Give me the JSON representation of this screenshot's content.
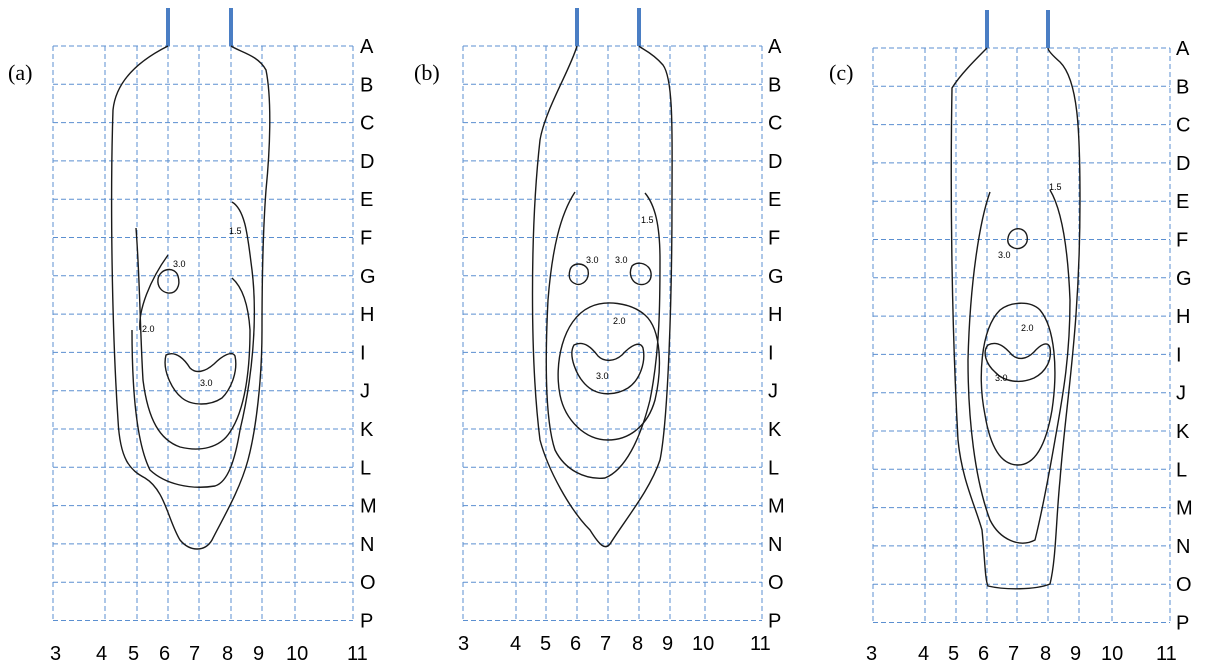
{
  "panels": [
    {
      "label": "(a)",
      "rows": [
        "A",
        "B",
        "C",
        "D",
        "E",
        "F",
        "G",
        "H",
        "I",
        "J",
        "K",
        "L",
        "M",
        "N",
        "O",
        "P"
      ],
      "columns": [
        "3",
        "4",
        "5",
        "6",
        "7",
        "8",
        "9",
        "10",
        "11"
      ],
      "contour_labels": [
        "1.5",
        "3.0",
        "2.0",
        "3.0"
      ]
    },
    {
      "label": "(b)",
      "rows": [
        "A",
        "B",
        "C",
        "D",
        "E",
        "F",
        "G",
        "H",
        "I",
        "J",
        "K",
        "L",
        "M",
        "N",
        "O",
        "P"
      ],
      "columns": [
        "3",
        "4",
        "5",
        "6",
        "7",
        "8",
        "9",
        "10",
        "11"
      ],
      "contour_labels": [
        "1.5",
        "3.0",
        "3.0",
        "2.0",
        "3.0"
      ]
    },
    {
      "label": "(c)",
      "rows": [
        "A",
        "B",
        "C",
        "D",
        "E",
        "F",
        "G",
        "H",
        "I",
        "J",
        "K",
        "L",
        "M",
        "N",
        "O",
        "P"
      ],
      "columns": [
        "3",
        "4",
        "5",
        "6",
        "7",
        "8",
        "9",
        "10",
        "11"
      ],
      "contour_labels": [
        "1.5",
        "3.0",
        "2.0",
        "3.0"
      ]
    }
  ],
  "colors": {
    "grid": "#5b8fd0",
    "electrode": "#4a7ec4",
    "contour": "#1a1a1a"
  }
}
